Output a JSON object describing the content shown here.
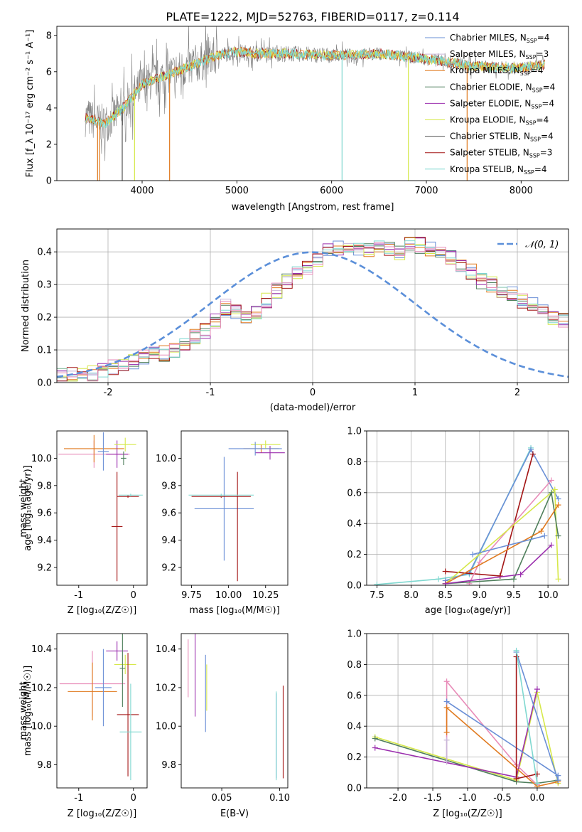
{
  "title": "PLATE=1222, MJD=52763, FIBERID=0117, z=0.114",
  "colors": {
    "chabrier_miles": "#6a8fd6",
    "salpeter_miles": "#c9b7d9",
    "kroupa_miles": "#e07a1f",
    "chabrier_elodie": "#4f7f5c",
    "salpeter_elodie": "#9b2fae",
    "kroupa_elodie": "#d6e84a",
    "chabrier_stelib": "#555555",
    "salpeter_stelib": "#a31515",
    "kroupa_stelib": "#7fd8d0",
    "pink": "#e88bb8",
    "data_spectrum": "#808080",
    "normal_curve": "#5b8fd9"
  },
  "chart_data": [
    {
      "id": "spectrum",
      "type": "line",
      "xlabel": "wavelength [Angstrom, rest frame]",
      "ylabel": "Flux [f_λ 10⁻¹⁷ erg cm⁻² s⁻¹ A⁻¹]",
      "xlim": [
        3100,
        8500
      ],
      "ylim": [
        0,
        8.5
      ],
      "xticks": [
        4000,
        5000,
        6000,
        7000,
        8000
      ],
      "yticks": [
        0,
        2,
        4,
        6,
        8
      ],
      "legend_position": "right",
      "legend": [
        {
          "label": "Chabrier MILES, N_SSP=4",
          "color_key": "chabrier_miles"
        },
        {
          "label": "Salpeter MILES, N_SSP=3",
          "color_key": "salpeter_miles"
        },
        {
          "label": "Kroupa MILES, N_SSP=4",
          "color_key": "kroupa_miles"
        },
        {
          "label": "Chabrier ELODIE, N_SSP=4",
          "color_key": "chabrier_elodie"
        },
        {
          "label": "Salpeter ELODIE, N_SSP=4",
          "color_key": "salpeter_elodie"
        },
        {
          "label": "Kroupa ELODIE, N_SSP=4",
          "color_key": "kroupa_elodie"
        },
        {
          "label": "Chabrier STELIB, N_SSP=4",
          "color_key": "chabrier_stelib"
        },
        {
          "label": "Salpeter STELIB, N_SSP=3",
          "color_key": "salpeter_stelib"
        },
        {
          "label": "Kroupa STELIB, N_SSP=4",
          "color_key": "kroupa_stelib"
        }
      ],
      "model_continuum": {
        "x": [
          3400,
          3600,
          3800,
          4000,
          4200,
          4400,
          4600,
          4800,
          5000,
          5200,
          5500,
          6000,
          6500,
          7000,
          7500,
          8000,
          8250
        ],
        "y": [
          3.5,
          3.1,
          4.0,
          5.3,
          5.7,
          6.1,
          6.5,
          6.9,
          7.1,
          7.0,
          7.0,
          6.9,
          7.0,
          6.7,
          6.3,
          6.2,
          6.4
        ]
      },
      "spikes": [
        {
          "x": 3530,
          "y": 0.0
        },
        {
          "x": 3550,
          "y": 0.0
        },
        {
          "x": 3790,
          "y": 0.0
        },
        {
          "x": 3920,
          "y": 0.0
        },
        {
          "x": 4290,
          "y": 0.0
        },
        {
          "x": 6110,
          "y": 0.0
        },
        {
          "x": 6810,
          "y": 0.0
        },
        {
          "x": 7430,
          "y": 0.0
        }
      ]
    },
    {
      "id": "residual_hist",
      "type": "line",
      "xlabel": "(data-model)/error",
      "ylabel": "Normed distribution",
      "xlim": [
        -2.5,
        2.5
      ],
      "ylim": [
        0,
        0.47
      ],
      "xticks": [
        -2,
        -1,
        0,
        1,
        2
      ],
      "yticks": [
        0.0,
        0.1,
        0.2,
        0.3,
        0.4
      ],
      "grid": true,
      "legend_position": "top-right",
      "normal_label": "𝒩(0, 1)",
      "bin_width": 0.1,
      "bin_start": -2.5,
      "mean_hist": [
        0.02,
        0.023,
        0.027,
        0.03,
        0.035,
        0.045,
        0.055,
        0.065,
        0.08,
        0.088,
        0.09,
        0.1,
        0.12,
        0.14,
        0.16,
        0.19,
        0.23,
        0.22,
        0.2,
        0.21,
        0.25,
        0.28,
        0.31,
        0.33,
        0.35,
        0.38,
        0.4,
        0.41,
        0.42,
        0.41,
        0.4,
        0.42,
        0.41,
        0.4,
        0.43,
        0.42,
        0.41,
        0.4,
        0.38,
        0.36,
        0.34,
        0.31,
        0.3,
        0.28,
        0.27,
        0.25,
        0.24,
        0.23,
        0.2,
        0.19,
        0.18,
        0.16,
        0.15,
        0.13,
        0.12,
        0.1,
        0.09,
        0.08,
        0.075,
        0.065,
        0.055,
        0.05,
        0.045,
        0.04,
        0.035,
        0.032,
        0.03,
        0.03,
        0.028,
        0.025,
        0.022,
        0.045
      ],
      "hist_colors": [
        "chabrier_miles",
        "salpeter_miles",
        "kroupa_miles",
        "chabrier_elodie",
        "salpeter_elodie",
        "kroupa_elodie",
        "salpeter_stelib",
        "kroupa_stelib",
        "pink"
      ]
    },
    {
      "id": "age_vs_Z",
      "type": "scatter",
      "xlabel": "Z [log₁₀(Z/Z☉)]",
      "ylabel": "age  [log₁₀(age/yr)]",
      "xlim": [
        -1.4,
        0.25
      ],
      "ylim": [
        9.07,
        10.2
      ],
      "xticks": [
        -1,
        0
      ],
      "yticks": [
        9.2,
        9.4,
        9.6,
        9.8,
        10.0
      ],
      "points": [
        {
          "x": -0.72,
          "xerr": 0.65,
          "y": 10.03,
          "yerr": 0.1,
          "c": "pink"
        },
        {
          "x": -0.72,
          "xerr": 0.55,
          "y": 10.07,
          "yerr": 0.1,
          "c": "kroupa_miles"
        },
        {
          "x": -0.55,
          "xerr": 0.1,
          "y": 10.05,
          "yerr": 0.14,
          "c": "chabrier_miles"
        },
        {
          "x": -0.3,
          "xerr": 0.2,
          "y": 10.03,
          "yerr": 0.1,
          "c": "salpeter_elodie"
        },
        {
          "x": -0.15,
          "xerr": 0.2,
          "y": 10.1,
          "yerr": 0.05,
          "c": "kroupa_elodie"
        },
        {
          "x": -0.18,
          "xerr": 0.05,
          "y": 10.0,
          "yerr": 0.05,
          "c": "chabrier_elodie"
        },
        {
          "x": -0.3,
          "xerr": 0.1,
          "y": 9.5,
          "yerr": 0.4,
          "c": "salpeter_stelib"
        },
        {
          "x": -0.1,
          "xerr": 0.2,
          "y": 9.72,
          "yerr": 0.01,
          "c": "salpeter_stelib"
        },
        {
          "x": -0.05,
          "xerr": 0.22,
          "y": 9.73,
          "yerr": 0.01,
          "c": "kroupa_stelib"
        }
      ]
    },
    {
      "id": "age_vs_mass",
      "type": "scatter",
      "xlabel": "mass [log₁₀(M/M☉)]",
      "ylabel": "",
      "xlim": [
        9.68,
        10.4
      ],
      "ylim": [
        9.07,
        10.2
      ],
      "xticks": [
        9.75,
        10.0,
        10.25
      ],
      "yticks": [
        9.2,
        9.4,
        9.6,
        9.8,
        10.0
      ],
      "points": [
        {
          "x": 10.22,
          "xerr": 0.12,
          "y": 10.07,
          "yerr": 0.03,
          "c": "kroupa_miles"
        },
        {
          "x": 10.25,
          "xerr": 0.1,
          "y": 10.1,
          "yerr": 0.03,
          "c": "kroupa_elodie"
        },
        {
          "x": 10.28,
          "xerr": 0.1,
          "y": 10.04,
          "yerr": 0.05,
          "c": "salpeter_elodie"
        },
        {
          "x": 10.18,
          "xerr": 0.18,
          "y": 10.07,
          "yerr": 0.05,
          "c": "chabrier_miles"
        },
        {
          "x": 9.97,
          "xerr": 0.2,
          "y": 9.63,
          "yerr": 0.38,
          "c": "chabrier_miles"
        },
        {
          "x": 10.06,
          "xerr": 0.0,
          "y": 9.5,
          "yerr": 0.4,
          "c": "salpeter_stelib"
        },
        {
          "x": 9.95,
          "xerr": 0.2,
          "y": 9.72,
          "yerr": 0.01,
          "c": "salpeter_stelib"
        },
        {
          "x": 9.95,
          "xerr": 0.22,
          "y": 9.73,
          "yerr": 0.01,
          "c": "kroupa_stelib"
        }
      ]
    },
    {
      "id": "weight_vs_age",
      "type": "line",
      "xlabel": "age  [log₁₀(age/yr)]",
      "ylabel": "mass weight",
      "xlim": [
        7.35,
        10.3
      ],
      "ylim": [
        0,
        1.0
      ],
      "xticks": [
        7.5,
        8.0,
        8.5,
        9.0,
        9.5,
        10.0
      ],
      "yticks": [
        0.0,
        0.2,
        0.4,
        0.6,
        0.8,
        1.0
      ],
      "grid": true,
      "series": [
        {
          "c": "kroupa_stelib",
          "x": [
            7.5,
            8.4,
            8.85,
            9.75
          ],
          "y": [
            0.005,
            0.04,
            0.07,
            0.89
          ]
        },
        {
          "c": "chabrier_miles",
          "x": [
            8.5,
            8.85,
            9.75,
            10.15
          ],
          "y": [
            0.03,
            0.08,
            0.88,
            0.56
          ]
        },
        {
          "c": "salpeter_stelib",
          "x": [
            8.5,
            9.3,
            9.78
          ],
          "y": [
            0.09,
            0.06,
            0.85
          ]
        },
        {
          "c": "pink",
          "x": [
            8.85,
            9.0,
            10.05
          ],
          "y": [
            0.01,
            0.15,
            0.68
          ]
        },
        {
          "c": "kroupa_elodie",
          "x": [
            8.5,
            10.1,
            10.15
          ],
          "y": [
            0.01,
            0.62,
            0.04
          ]
        },
        {
          "c": "chabrier_elodie",
          "x": [
            8.5,
            9.5,
            10.05,
            10.15
          ],
          "y": [
            0.01,
            0.04,
            0.6,
            0.32
          ]
        },
        {
          "c": "kroupa_miles",
          "x": [
            8.5,
            9.9,
            10.15
          ],
          "y": [
            0.01,
            0.35,
            0.52
          ]
        },
        {
          "c": "salpeter_elodie",
          "x": [
            8.5,
            9.6,
            10.05
          ],
          "y": [
            0.01,
            0.07,
            0.26
          ]
        },
        {
          "c": "chabrier_miles",
          "x": [
            8.9,
            9.95
          ],
          "y": [
            0.2,
            0.32
          ]
        }
      ]
    },
    {
      "id": "mass_vs_Z",
      "type": "scatter",
      "xlabel": "Z [log₁₀(Z/Z☉)]",
      "ylabel": "mass [log₁₀(M/M☉)]",
      "xlim": [
        -1.4,
        0.25
      ],
      "ylim": [
        9.68,
        10.48
      ],
      "xticks": [
        -1,
        0
      ],
      "yticks": [
        9.8,
        10.0,
        10.2,
        10.4
      ],
      "points": [
        {
          "x": -0.75,
          "xerr": 0.6,
          "y": 10.22,
          "yerr": 0.17,
          "c": "pink"
        },
        {
          "x": -0.75,
          "xerr": 0.45,
          "y": 10.18,
          "yerr": 0.15,
          "c": "kroupa_miles"
        },
        {
          "x": -0.55,
          "xerr": 0.15,
          "y": 10.2,
          "yerr": 0.2,
          "c": "chabrier_miles"
        },
        {
          "x": -0.3,
          "xerr": 0.2,
          "y": 10.39,
          "yerr": 0.05,
          "c": "salpeter_elodie"
        },
        {
          "x": -0.15,
          "xerr": 0.2,
          "y": 10.32,
          "yerr": 0.05,
          "c": "kroupa_elodie"
        },
        {
          "x": -0.2,
          "xerr": 0.05,
          "y": 10.3,
          "yerr": 0.2,
          "c": "chabrier_elodie"
        },
        {
          "x": -0.1,
          "xerr": 0.2,
          "y": 10.06,
          "yerr": 0.32,
          "c": "salpeter_stelib"
        },
        {
          "x": -0.05,
          "xerr": 0.2,
          "y": 9.97,
          "yerr": 0.25,
          "c": "kroupa_stelib"
        }
      ]
    },
    {
      "id": "mass_vs_EBV",
      "type": "scatter",
      "xlabel": "E(B-V)",
      "ylabel": "",
      "xlim": [
        0.015,
        0.107
      ],
      "ylim": [
        9.68,
        10.48
      ],
      "xticks": [
        0.05,
        0.1
      ],
      "yticks": [
        9.8,
        10.0,
        10.2,
        10.4
      ],
      "points": [
        {
          "x": 0.021,
          "xerr": 0.0,
          "y": 10.3,
          "yerr": 0.15,
          "c": "pink"
        },
        {
          "x": 0.027,
          "xerr": 0.0,
          "y": 10.3,
          "yerr": 0.25,
          "c": "salpeter_elodie"
        },
        {
          "x": 0.036,
          "xerr": 0.0,
          "y": 10.17,
          "yerr": 0.2,
          "c": "chabrier_miles"
        },
        {
          "x": 0.037,
          "xerr": 0.0,
          "y": 10.2,
          "yerr": 0.12,
          "c": "kroupa_elodie"
        },
        {
          "x": 0.097,
          "xerr": 0.0,
          "y": 9.95,
          "yerr": 0.22,
          "c": "chabrier_miles"
        },
        {
          "x": 0.097,
          "xerr": 0.0,
          "y": 9.95,
          "yerr": 0.23,
          "c": "kroupa_stelib"
        },
        {
          "x": 0.103,
          "xerr": 0.0,
          "y": 9.97,
          "yerr": 0.24,
          "c": "salpeter_stelib"
        }
      ]
    },
    {
      "id": "weight_vs_Z",
      "type": "line",
      "xlabel": "Z [log₁₀(Z/Z☉)]",
      "ylabel": "mass weight",
      "xlim": [
        -2.45,
        0.45
      ],
      "ylim": [
        0,
        1.0
      ],
      "xticks": [
        -2.0,
        -1.5,
        -1.0,
        -0.5,
        0.0
      ],
      "yticks": [
        0.0,
        0.2,
        0.4,
        0.6,
        0.8,
        1.0
      ],
      "grid": true,
      "series": [
        {
          "c": "kroupa_elodie",
          "x": [
            -2.33,
            -0.3,
            0.0,
            0.3
          ],
          "y": [
            0.33,
            0.05,
            0.62,
            0.03
          ]
        },
        {
          "c": "chabrier_elodie",
          "x": [
            -2.33,
            -0.3,
            0.0,
            0.3
          ],
          "y": [
            0.32,
            0.04,
            0.03,
            0.05
          ]
        },
        {
          "c": "salpeter_elodie",
          "x": [
            -2.33,
            -0.3,
            0.0
          ],
          "y": [
            0.26,
            0.07,
            0.64
          ]
        },
        {
          "c": "pink",
          "x": [
            -1.3,
            -1.3,
            -0.3,
            0.0
          ],
          "y": [
            0.17,
            0.69,
            0.15,
            0.02
          ]
        },
        {
          "c": "kroupa_miles",
          "x": [
            -1.3,
            -1.3,
            0.0,
            0.3
          ],
          "y": [
            0.36,
            0.52,
            0.01,
            0.04
          ]
        },
        {
          "c": "chabrier_miles",
          "x": [
            -1.3,
            0.3,
            0.3,
            -0.3
          ],
          "y": [
            0.56,
            0.08,
            0.05,
            0.88
          ]
        },
        {
          "c": "salpeter_stelib",
          "x": [
            -0.3,
            -0.3,
            0.0
          ],
          "y": [
            0.85,
            0.06,
            0.09
          ]
        },
        {
          "c": "kroupa_stelib",
          "x": [
            -0.3,
            0.0
          ],
          "y": [
            0.89,
            0.03
          ]
        },
        {
          "c": "salpeter_miles",
          "x": [
            -1.3,
            -1.3
          ],
          "y": [
            0.31,
            0.17
          ]
        }
      ]
    }
  ]
}
